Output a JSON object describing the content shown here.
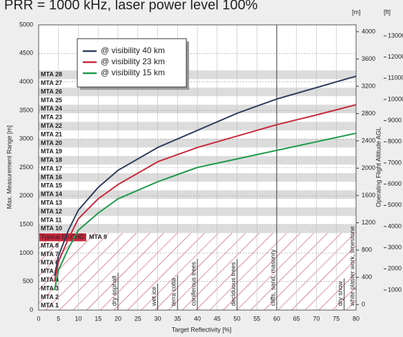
{
  "chart_data": {
    "type": "line",
    "title": "PRR = 1000 kHz, laser power level 100%",
    "xlabel": "Target Reflectivity [%]",
    "ylabel": "Max. Measurement Range [m]",
    "y2label": "Operating Flight Altitude AGL",
    "y2unit": "[m]",
    "y3unit": "[ft]",
    "x": [
      4,
      5,
      7.5,
      10,
      15,
      20,
      30,
      40,
      50,
      60,
      70,
      80
    ],
    "series": [
      {
        "name": "@ visibility 40 km",
        "color": "#2e3f5c",
        "values": [
          600,
          950,
          1400,
          1750,
          2150,
          2450,
          2850,
          3150,
          3450,
          3700,
          3900,
          4100
        ]
      },
      {
        "name": "@ visibility 23 km",
        "color": "#c8283c",
        "values": [
          500,
          850,
          1250,
          1600,
          1950,
          2200,
          2600,
          2850,
          3050,
          3250,
          3420,
          3600
        ]
      },
      {
        "name": "@ visibility 15 km",
        "color": "#1e9a4c",
        "values": [
          350,
          700,
          1080,
          1400,
          1700,
          1950,
          2250,
          2500,
          2650,
          2800,
          2950,
          3100
        ]
      }
    ],
    "xlim": [
      0,
      80
    ],
    "xticks": [
      0,
      5,
      10,
      15,
      20,
      25,
      30,
      35,
      40,
      45,
      50,
      55,
      60,
      65,
      70,
      75,
      80
    ],
    "ylim": [
      0,
      5000
    ],
    "yticks": [
      0,
      500,
      1000,
      1500,
      2000,
      2500,
      3000,
      3500,
      4000,
      4500,
      5000
    ],
    "y2lim": [
      -80,
      4100
    ],
    "y2ticks": [
      0,
      400,
      800,
      1200,
      1600,
      2000,
      2400,
      2800,
      3200,
      3600,
      4000
    ],
    "y3lim": [
      54,
      13520
    ],
    "y3ticks": [
      1000,
      2000,
      3000,
      4000,
      5000,
      6000,
      7000,
      8000,
      9000,
      10000,
      11000,
      12000,
      13000
    ],
    "grid": true,
    "mta_zone_width": 150,
    "mta_labels": [
      "MTA 1",
      "MTA 2",
      "MTA 3",
      "MTA 4",
      "MTA 5",
      "MTA 6",
      "MTA 7",
      "MTA 8",
      "MTA 9",
      "MTA 10",
      "MTA 11",
      "MTA 12",
      "MTA 13",
      "MTA 14",
      "MTA 15",
      "MTA 16",
      "MTA 17",
      "MTA 18",
      "MTA 19",
      "MTA 20",
      "MTA 21",
      "MTA 22",
      "MTA 23",
      "MTA 24",
      "MTA 25",
      "MTA 26",
      "MTA 27",
      "MTA 28"
    ],
    "enohd_label": "Typical ENOHD",
    "enohd_range": 1350,
    "materials": [
      {
        "label": "dry asphalt",
        "x": 20
      },
      {
        "label": "wet ice",
        "x": 30
      },
      {
        "label": "terra cotta",
        "x": 35
      },
      {
        "label": "coniferous trees",
        "x": 40
      },
      {
        "label": "deciduous trees",
        "x": 50
      },
      {
        "label": "cliffs, sand, masonry",
        "x": 60
      },
      {
        "label": "dry snow",
        "x": 77
      },
      {
        "label": "white plaster work, limestone",
        "x": 80
      }
    ]
  }
}
